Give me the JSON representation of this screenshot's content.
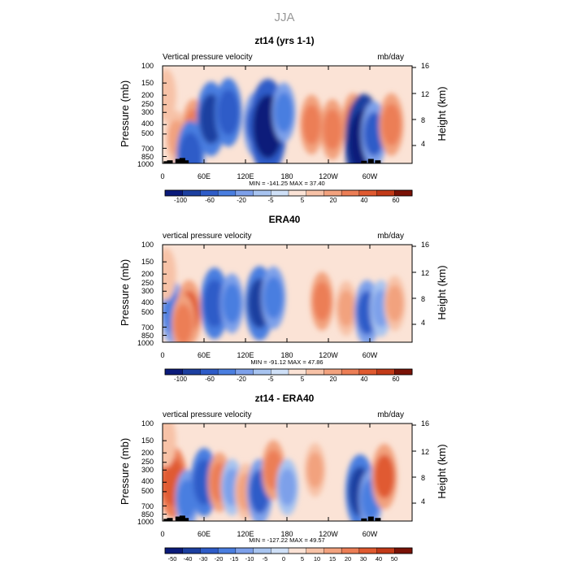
{
  "figure_title": "JJA",
  "colors": {
    "negative": [
      "#0a1a7a",
      "#1c3fa0",
      "#2e5cc8",
      "#4a7ee0",
      "#7da0ea",
      "#a8c4f0",
      "#cfe0f7"
    ],
    "positive": [
      "#fbe3d6",
      "#f7c2a7",
      "#f2a27e",
      "#ec7e56",
      "#e05a30",
      "#c23a18",
      "#7a1206"
    ],
    "terrain": "#000000"
  },
  "chart_data": [
    {
      "type": "heatmap",
      "title": "zt14 (yrs 1-1)",
      "left_label": "Vertical pressure velocity",
      "units_label": "mb/day",
      "ylabel": "Pressure (mb)",
      "right_label": "Height (km)",
      "x_ticks": [
        "0",
        "60E",
        "120E",
        "180",
        "120W",
        "60W"
      ],
      "y_ticks": [
        "100",
        "150",
        "200",
        "250",
        "300",
        "400",
        "500",
        "700",
        "850",
        "1000"
      ],
      "height_ticks": [
        "16",
        "12",
        "8",
        "4"
      ],
      "min_max": "MIN = -141.25   MAX =  37.40",
      "colorbar_labels": [
        "-100",
        "-60",
        "-20",
        "-5",
        "5",
        "20",
        "40",
        "60"
      ],
      "blobs": [
        {
          "lon": 20,
          "p": 550,
          "v": 12
        },
        {
          "lon": 45,
          "p": 450,
          "v": 22
        },
        {
          "lon": 70,
          "p": 350,
          "v": -45
        },
        {
          "lon": 95,
          "p": 300,
          "v": -35
        },
        {
          "lon": 135,
          "p": 400,
          "v": -30
        },
        {
          "lon": 152,
          "p": 420,
          "v": -80
        },
        {
          "lon": 175,
          "p": 300,
          "v": -20
        },
        {
          "lon": 215,
          "p": 400,
          "v": 20
        },
        {
          "lon": 245,
          "p": 450,
          "v": 22
        },
        {
          "lon": 275,
          "p": 380,
          "v": 18
        },
        {
          "lon": 290,
          "p": 600,
          "v": -120
        },
        {
          "lon": 305,
          "p": 500,
          "v": -30
        },
        {
          "lon": 330,
          "p": 400,
          "v": 25
        },
        {
          "lon": 5,
          "p": 200,
          "v": 8
        },
        {
          "lon": 40,
          "p": 850,
          "v": -40
        }
      ],
      "terrain": [
        [
          5,
          950
        ],
        [
          10,
          930
        ],
        [
          22,
          900
        ],
        [
          28,
          880
        ],
        [
          33,
          930
        ],
        [
          290,
          940
        ],
        [
          300,
          900
        ],
        [
          310,
          930
        ]
      ]
    },
    {
      "type": "heatmap",
      "title": "ERA40",
      "left_label": "vertical pressure velocity",
      "units_label": "mb/day",
      "ylabel": "Pressure (mb)",
      "right_label": "Height (km)",
      "x_ticks": [
        "0",
        "60E",
        "120E",
        "180",
        "120W",
        "60W"
      ],
      "y_ticks": [
        "100",
        "150",
        "200",
        "250",
        "300",
        "400",
        "500",
        "700",
        "850",
        "1000"
      ],
      "height_ticks": [
        "16",
        "12",
        "8",
        "4"
      ],
      "min_max": "MIN = -91.12   MAX =  47.86",
      "colorbar_labels": [
        "-100",
        "-60",
        "-20",
        "-5",
        "5",
        "20",
        "40",
        "60"
      ],
      "blobs": [
        {
          "lon": 15,
          "p": 500,
          "v": -25
        },
        {
          "lon": 38,
          "p": 500,
          "v": 30
        },
        {
          "lon": 30,
          "p": 650,
          "v": 20
        },
        {
          "lon": 75,
          "p": 400,
          "v": -40
        },
        {
          "lon": 100,
          "p": 400,
          "v": -20
        },
        {
          "lon": 140,
          "p": 400,
          "v": -45
        },
        {
          "lon": 160,
          "p": 350,
          "v": -25
        },
        {
          "lon": 230,
          "p": 380,
          "v": 18
        },
        {
          "lon": 265,
          "p": 450,
          "v": 12
        },
        {
          "lon": 295,
          "p": 500,
          "v": -30
        },
        {
          "lon": 315,
          "p": 450,
          "v": -15
        },
        {
          "lon": 335,
          "p": 400,
          "v": 12
        },
        {
          "lon": 5,
          "p": 200,
          "v": 8
        }
      ],
      "terrain": []
    },
    {
      "type": "heatmap",
      "title": "zt14 - ERA40",
      "left_label": "vertical pressure velocity",
      "units_label": "mb/day",
      "ylabel": "Pressure (mb)",
      "right_label": "Height (km)",
      "x_ticks": [
        "0",
        "60E",
        "120E",
        "180",
        "120W",
        "60W"
      ],
      "y_ticks": [
        "100",
        "150",
        "200",
        "250",
        "300",
        "400",
        "500",
        "700",
        "850",
        "1000"
      ],
      "height_ticks": [
        "16",
        "12",
        "8",
        "4"
      ],
      "min_max": "MIN = -127.22   MAX =  49.57",
      "colorbar_labels": [
        "-50",
        "-40",
        "-30",
        "-20",
        "-15",
        "-10",
        "-5",
        "0",
        "5",
        "10",
        "15",
        "20",
        "30",
        "40",
        "50"
      ],
      "blobs": [
        {
          "lon": 15,
          "p": 400,
          "v": 40
        },
        {
          "lon": 35,
          "p": 600,
          "v": -20
        },
        {
          "lon": 60,
          "p": 400,
          "v": -35
        },
        {
          "lon": 82,
          "p": 400,
          "v": 20
        },
        {
          "lon": 100,
          "p": 450,
          "v": -15
        },
        {
          "lon": 120,
          "p": 500,
          "v": 15
        },
        {
          "lon": 140,
          "p": 500,
          "v": -30
        },
        {
          "lon": 160,
          "p": 300,
          "v": 20
        },
        {
          "lon": 180,
          "p": 450,
          "v": -15
        },
        {
          "lon": 220,
          "p": 300,
          "v": 10
        },
        {
          "lon": 285,
          "p": 500,
          "v": -45
        },
        {
          "lon": 300,
          "p": 600,
          "v": -20
        },
        {
          "lon": 320,
          "p": 350,
          "v": 30
        },
        {
          "lon": 5,
          "p": 150,
          "v": 8
        }
      ],
      "terrain": [
        [
          5,
          950
        ],
        [
          10,
          930
        ],
        [
          22,
          900
        ],
        [
          28,
          880
        ],
        [
          33,
          930
        ],
        [
          290,
          940
        ],
        [
          300,
          900
        ],
        [
          310,
          930
        ]
      ]
    }
  ]
}
